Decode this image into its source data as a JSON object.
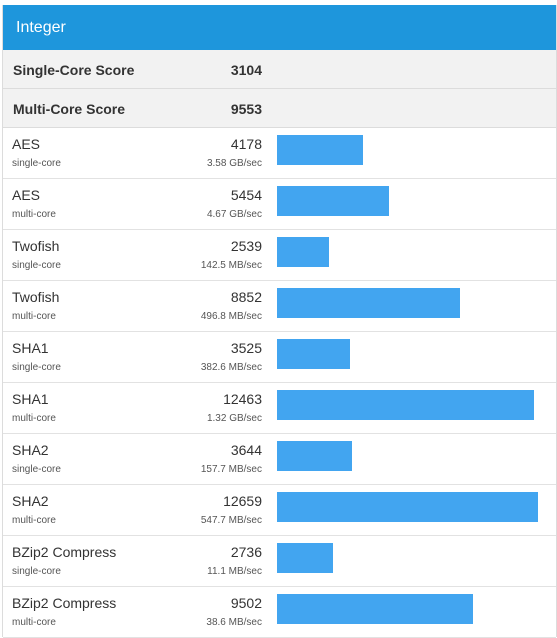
{
  "section": {
    "title": "Integer"
  },
  "scores": [
    {
      "label": "Single-Core Score",
      "value": "3104"
    },
    {
      "label": "Multi-Core Score",
      "value": "9553"
    }
  ],
  "max_score": 12659,
  "accent_color": "#42a5f0",
  "header_color": "#1e96dc",
  "rows": [
    {
      "name": "AES",
      "mode": "single-core",
      "score": "4178",
      "rate": "3.58 GB/sec"
    },
    {
      "name": "AES",
      "mode": "multi-core",
      "score": "5454",
      "rate": "4.67 GB/sec"
    },
    {
      "name": "Twofish",
      "mode": "single-core",
      "score": "2539",
      "rate": "142.5 MB/sec"
    },
    {
      "name": "Twofish",
      "mode": "multi-core",
      "score": "8852",
      "rate": "496.8 MB/sec"
    },
    {
      "name": "SHA1",
      "mode": "single-core",
      "score": "3525",
      "rate": "382.6 MB/sec"
    },
    {
      "name": "SHA1",
      "mode": "multi-core",
      "score": "12463",
      "rate": "1.32 GB/sec"
    },
    {
      "name": "SHA2",
      "mode": "single-core",
      "score": "3644",
      "rate": "157.7 MB/sec"
    },
    {
      "name": "SHA2",
      "mode": "multi-core",
      "score": "12659",
      "rate": "547.7 MB/sec"
    },
    {
      "name": "BZip2 Compress",
      "mode": "single-core",
      "score": "2736",
      "rate": "11.1 MB/sec"
    },
    {
      "name": "BZip2 Compress",
      "mode": "multi-core",
      "score": "9502",
      "rate": "38.6 MB/sec"
    }
  ]
}
